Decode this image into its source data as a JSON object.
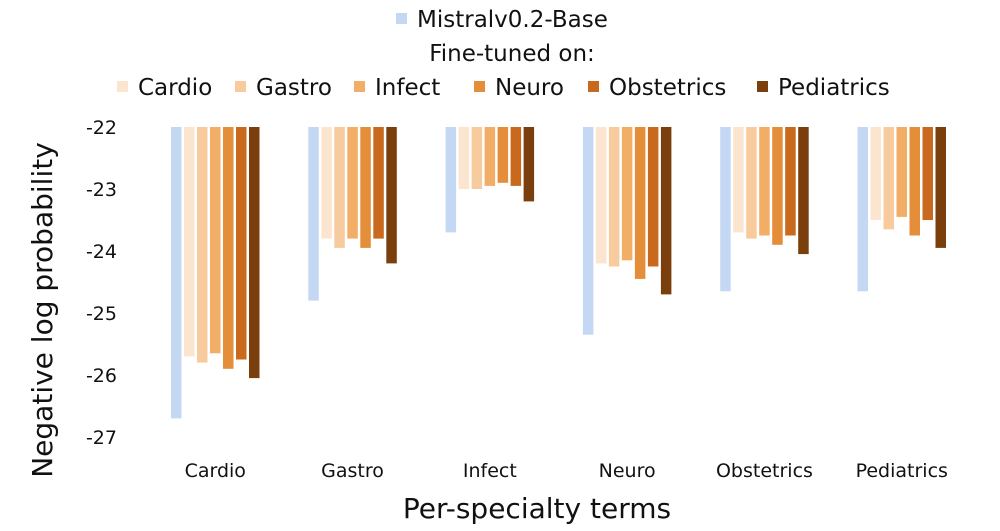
{
  "chart_data": {
    "type": "bar",
    "orientation": "downward",
    "legend_header": "Fine-tuned on:",
    "categories": [
      "Cardio",
      "Gastro",
      "Infect",
      "Neuro",
      "Obstetrics",
      "Pediatrics"
    ],
    "xlabel": "Per-specialty terms",
    "ylabel": "Negative log probability",
    "ylim": [
      -27,
      -22
    ],
    "yticks": [
      -22,
      -23,
      -24,
      -25,
      -26,
      -27
    ],
    "ytick_labels": [
      "-22",
      "-23",
      "-24",
      "-25",
      "-26",
      "-27"
    ],
    "grid": false,
    "legend_position": "top",
    "series": [
      {
        "name": "Mistralv0.2-Base",
        "color": "#c5d8f3",
        "values": [
          -26.7,
          -24.8,
          -23.7,
          -25.35,
          -24.65,
          -24.65
        ]
      },
      {
        "name": "Cardio",
        "color": "#fbe5cf",
        "values": [
          -25.7,
          -23.8,
          -23.0,
          -24.2,
          -23.7,
          -23.5
        ]
      },
      {
        "name": "Gastro",
        "color": "#f7cb9d",
        "values": [
          -25.8,
          -23.95,
          -23.0,
          -24.25,
          -23.8,
          -23.65
        ]
      },
      {
        "name": "Infect",
        "color": "#f2ad67",
        "values": [
          -25.65,
          -23.8,
          -22.95,
          -24.15,
          -23.75,
          -23.45
        ]
      },
      {
        "name": "Neuro",
        "color": "#e58e3a",
        "values": [
          -25.9,
          -23.95,
          -22.9,
          -24.45,
          -23.9,
          -23.75
        ]
      },
      {
        "name": "Obstetrics",
        "color": "#c9691d",
        "values": [
          -25.75,
          -23.8,
          -22.95,
          -24.25,
          -23.75,
          -23.5
        ]
      },
      {
        "name": "Pediatrics",
        "color": "#7b3f0d",
        "values": [
          -26.05,
          -24.2,
          -23.2,
          -24.7,
          -24.05,
          -23.95
        ]
      }
    ]
  }
}
